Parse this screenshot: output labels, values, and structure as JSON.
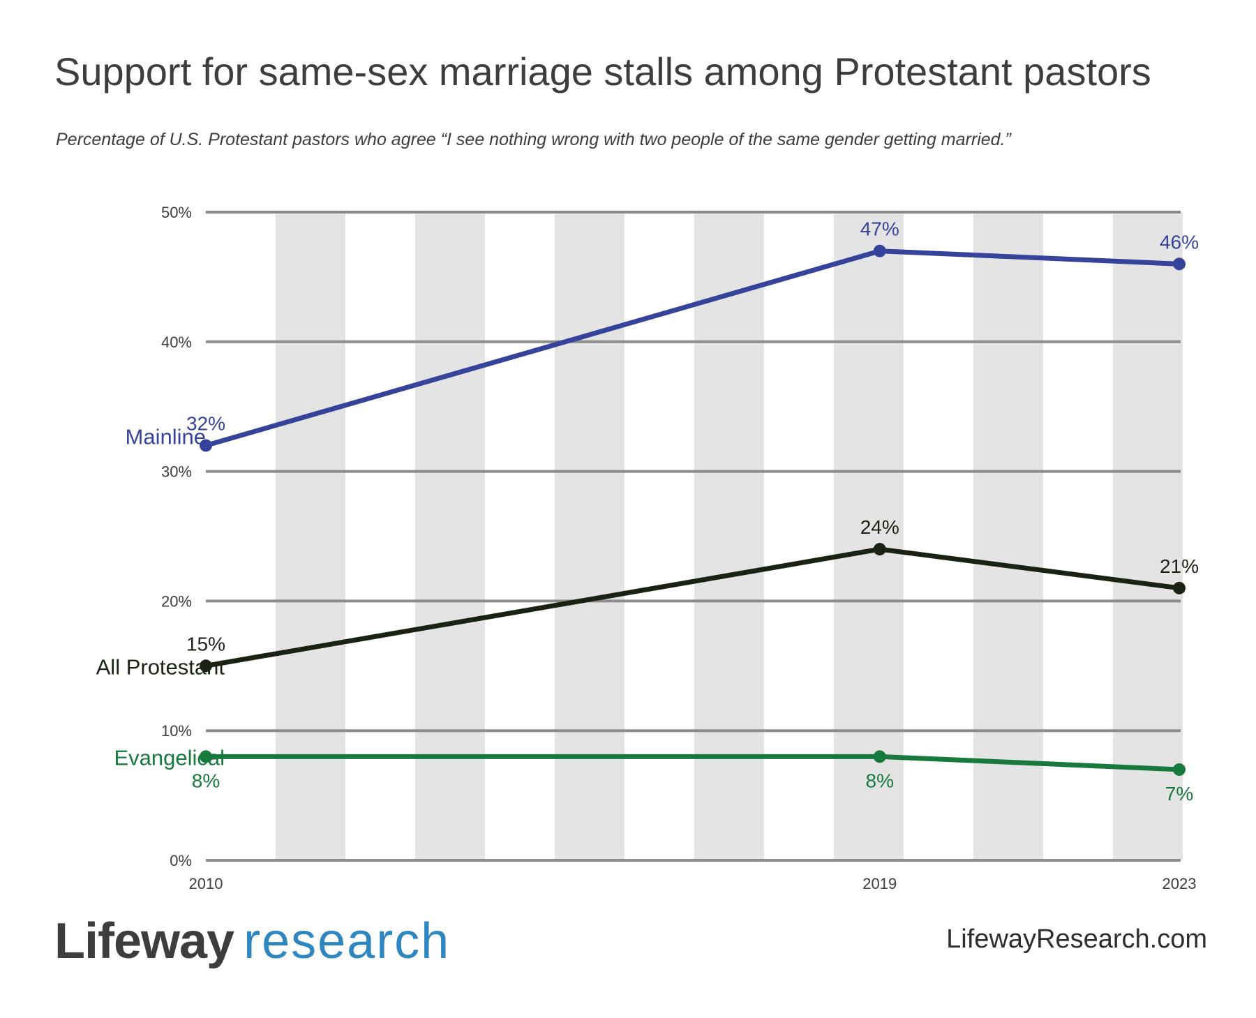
{
  "title": "Support for same-sex marriage stalls among Protestant pastors",
  "subtitle": "Percentage of U.S. Protestant pastors who agree “I see nothing wrong with two people of the same gender getting married.”",
  "footer": {
    "logo_part1": "Lifeway",
    "logo_part2": "research",
    "website": "LifewayResearch.com"
  },
  "colors": {
    "Mainline": "#36439b",
    "All Protestant": "#1a2214",
    "Evangelical": "#177a3c",
    "gridline": "#8c8c8c",
    "band": "#e4e4e4"
  },
  "chart_data": {
    "type": "line",
    "x": [
      2010,
      2019,
      2023
    ],
    "xlim": [
      2010,
      2023
    ],
    "ylim": [
      0,
      50
    ],
    "yticks": [
      "0%",
      "10%",
      "20%",
      "30%",
      "40%",
      "50%"
    ],
    "xticks": [
      "2010",
      "2019",
      "2023"
    ],
    "grid": true,
    "legend": "inline labels at left",
    "series": [
      {
        "name": "Mainline",
        "values": [
          32,
          47,
          46
        ],
        "labels": [
          "32%",
          "47%",
          "46%"
        ]
      },
      {
        "name": "All Protestant",
        "values": [
          15,
          24,
          21
        ],
        "labels": [
          "15%",
          "24%",
          "21%"
        ]
      },
      {
        "name": "Evangelical",
        "values": [
          8,
          8,
          7
        ],
        "labels": [
          "8%",
          "8%",
          "7%"
        ]
      }
    ]
  }
}
